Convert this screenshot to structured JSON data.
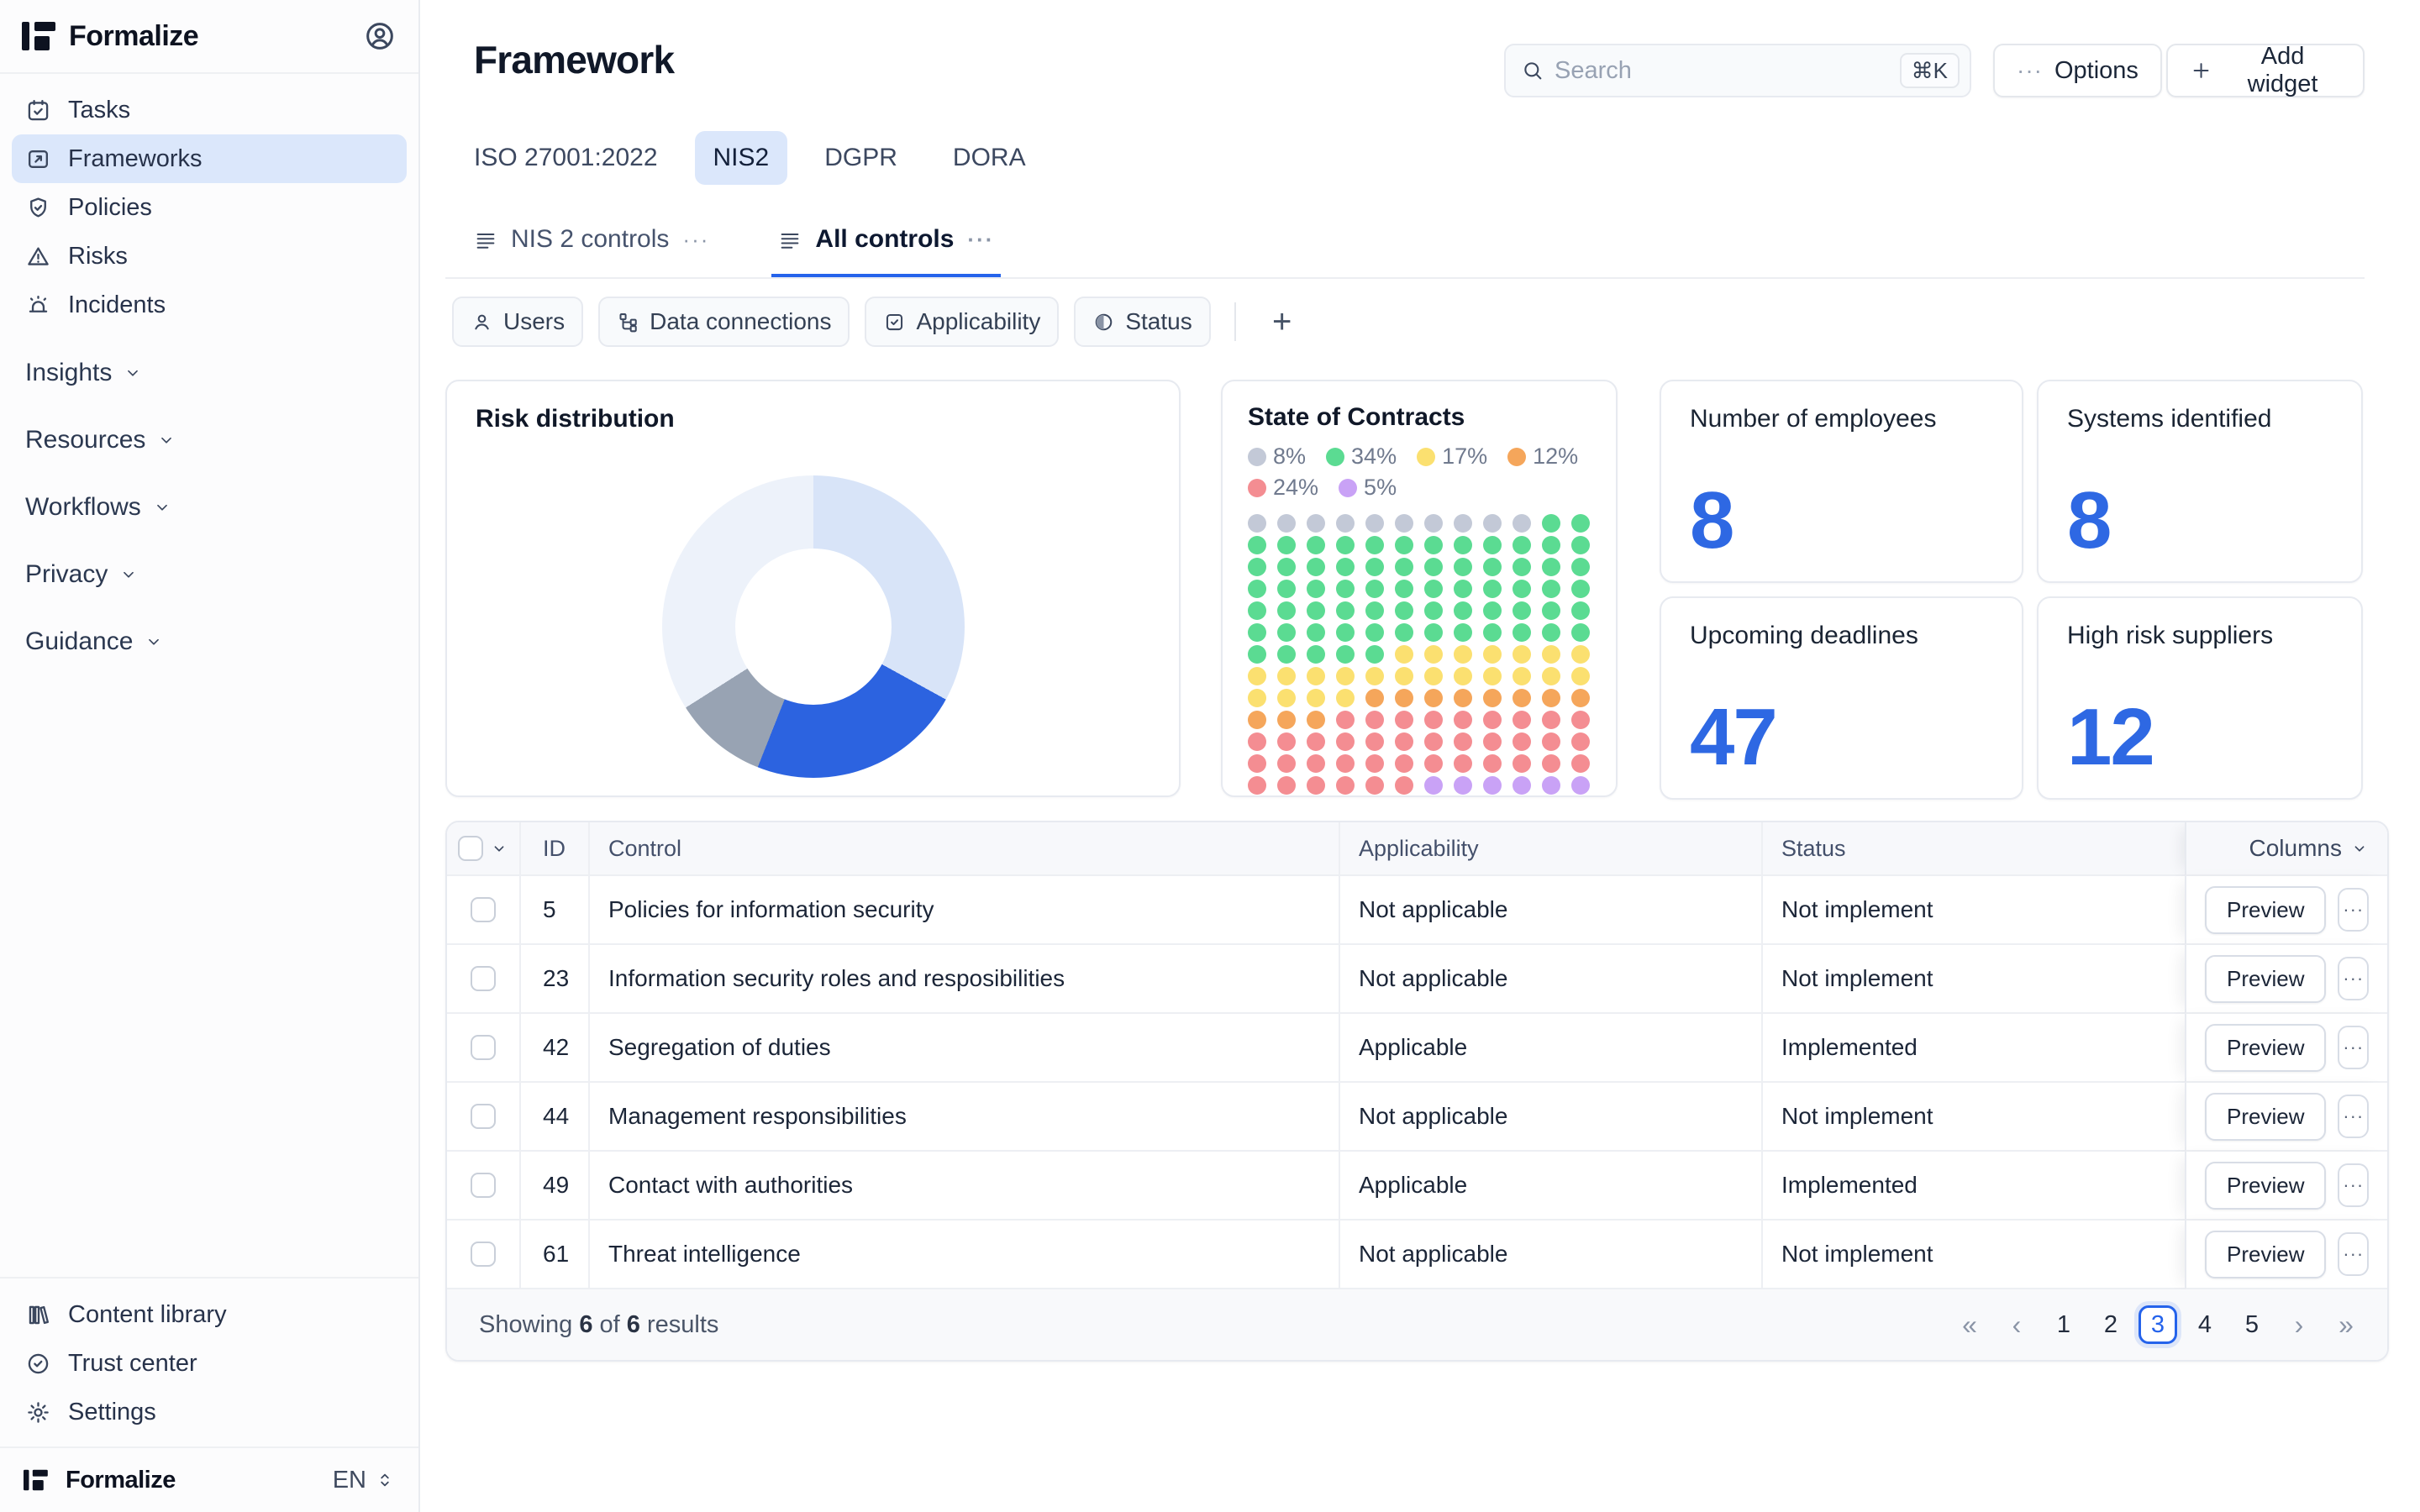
{
  "brand": {
    "name": "Formalize"
  },
  "sidebar": {
    "nav": [
      {
        "label": "Tasks",
        "icon": "calendar-check-icon"
      },
      {
        "label": "Frameworks",
        "icon": "frame-icon",
        "active": true
      },
      {
        "label": "Policies",
        "icon": "shield-check-icon"
      },
      {
        "label": "Risks",
        "icon": "alert-triangle-icon"
      },
      {
        "label": "Incidents",
        "icon": "siren-icon"
      }
    ],
    "sections": [
      {
        "label": "Insights"
      },
      {
        "label": "Resources"
      },
      {
        "label": "Workflows"
      },
      {
        "label": "Privacy"
      },
      {
        "label": "Guidance"
      }
    ],
    "footer_nav": [
      {
        "label": "Content library",
        "icon": "library-icon"
      },
      {
        "label": "Trust center",
        "icon": "badge-check-icon"
      },
      {
        "label": "Settings",
        "icon": "gear-icon"
      }
    ],
    "language": "EN"
  },
  "header": {
    "title": "Framework",
    "search_placeholder": "Search",
    "search_shortcut": "⌘K",
    "options_label": "Options",
    "add_widget_label": "Add widget",
    "ellipsis": "···"
  },
  "framework_tabs": [
    {
      "label": "ISO 27001:2022"
    },
    {
      "label": "NIS2",
      "active": true
    },
    {
      "label": "DGPR"
    },
    {
      "label": "DORA"
    }
  ],
  "view_tabs": [
    {
      "label": "NIS 2 controls",
      "more": "···"
    },
    {
      "label": "All controls",
      "more": "···",
      "active": true
    }
  ],
  "filters": {
    "chips": [
      {
        "label": "Users",
        "icon": "user-icon"
      },
      {
        "label": "Data connections",
        "icon": "hierarchy-icon"
      },
      {
        "label": "Applicability",
        "icon": "checkbox-icon"
      },
      {
        "label": "Status",
        "icon": "half-circle-icon"
      }
    ],
    "add_label": "+"
  },
  "widgets": {
    "risk": {
      "title": "Risk distribution",
      "segments": [
        {
          "label": "light-blue",
          "value": 33,
          "color": "#d8e4f8"
        },
        {
          "label": "blue",
          "value": 23,
          "color": "#2c63e0"
        },
        {
          "label": "grey",
          "value": 10,
          "color": "#98a3b3"
        },
        {
          "label": "pale-blue",
          "value": 34,
          "color": "#edf2fa"
        }
      ]
    },
    "contracts": {
      "title": "State of Contracts",
      "palette": {
        "grey": "#c3c9d7",
        "green": "#5bdb92",
        "yellow": "#fbe070",
        "orange": "#f5a65b",
        "red": "#f48d92",
        "purple": "#c9a2f6"
      },
      "legend": [
        {
          "pct": "8%",
          "key": "grey"
        },
        {
          "pct": "34%",
          "key": "green"
        },
        {
          "pct": "17%",
          "key": "yellow"
        },
        {
          "pct": "12%",
          "key": "orange"
        },
        {
          "pct": "24%",
          "key": "red"
        },
        {
          "pct": "5%",
          "key": "purple"
        }
      ],
      "grid_rows": [
        [
          [
            "grey",
            10
          ],
          [
            "green",
            2
          ]
        ],
        [
          [
            "green",
            12
          ]
        ],
        [
          [
            "green",
            12
          ]
        ],
        [
          [
            "green",
            12
          ]
        ],
        [
          [
            "green",
            12
          ]
        ],
        [
          [
            "green",
            12
          ]
        ],
        [
          [
            "green",
            5
          ],
          [
            "yellow",
            7
          ]
        ],
        [
          [
            "yellow",
            12
          ]
        ],
        [
          [
            "yellow",
            4
          ],
          [
            "orange",
            8
          ]
        ],
        [
          [
            "orange",
            3
          ],
          [
            "red",
            9
          ]
        ],
        [
          [
            "red",
            12
          ]
        ],
        [
          [
            "red",
            12
          ]
        ],
        [
          [
            "red",
            6
          ],
          [
            "purple",
            6
          ]
        ]
      ]
    },
    "stats": [
      {
        "label": "Number of employees",
        "value": "8"
      },
      {
        "label": "Systems identified",
        "value": "8"
      },
      {
        "label": "Upcoming deadlines",
        "value": "47"
      },
      {
        "label": "High risk suppliers",
        "value": "12"
      }
    ]
  },
  "chart_data": [
    {
      "type": "pie",
      "title": "Risk distribution",
      "donut": true,
      "start_angle": "12-oclock",
      "direction": "clockwise",
      "segments": [
        {
          "name": "light-blue",
          "value": 33,
          "color": "#d8e4f8"
        },
        {
          "name": "blue",
          "value": 23,
          "color": "#2c63e0"
        },
        {
          "name": "grey",
          "value": 10,
          "color": "#98a3b3"
        },
        {
          "name": "pale-blue",
          "value": 34,
          "color": "#edf2fa"
        }
      ]
    },
    {
      "type": "heatmap",
      "title": "State of Contracts",
      "subtype": "waffle-dot-grid",
      "columns": 12,
      "rows": 13,
      "legend": [
        {
          "label": "8%",
          "color": "#c3c9d7"
        },
        {
          "label": "34%",
          "color": "#5bdb92"
        },
        {
          "label": "17%",
          "color": "#fbe070"
        },
        {
          "label": "12%",
          "color": "#f5a65b"
        },
        {
          "label": "24%",
          "color": "#f48d92"
        },
        {
          "label": "5%",
          "color": "#c9a2f6"
        }
      ]
    }
  ],
  "table": {
    "headers": {
      "id": "ID",
      "control": "Control",
      "applicability": "Applicability",
      "status": "Status"
    },
    "columns_panel_label": "Columns",
    "row_action_label": "Preview",
    "row_menu": "···",
    "rows": [
      {
        "id": "5",
        "control": "Policies for information security",
        "applicability": "Not applicable",
        "status": "Not implement"
      },
      {
        "id": "23",
        "control": "Information security roles and resposibilities",
        "applicability": "Not applicable",
        "status": "Not implement"
      },
      {
        "id": "42",
        "control": "Segregation of duties",
        "applicability": "Applicable",
        "status": "Implemented"
      },
      {
        "id": "44",
        "control": "Management responsibilities",
        "applicability": "Not applicable",
        "status": "Not implement"
      },
      {
        "id": "49",
        "control": "Contact with authorities",
        "applicability": "Applicable",
        "status": "Implemented"
      },
      {
        "id": "61",
        "control": "Threat intelligence",
        "applicability": "Not applicable",
        "status": "Not implement"
      }
    ]
  },
  "pagination": {
    "summary": {
      "prefix": "Showing",
      "shown": "6",
      "of": "of",
      "total": "6",
      "suffix": "results"
    },
    "first": "«",
    "prev": "‹",
    "next": "›",
    "last": "»",
    "pages": [
      "1",
      "2",
      "3",
      "4",
      "5"
    ],
    "active_index": 2
  }
}
